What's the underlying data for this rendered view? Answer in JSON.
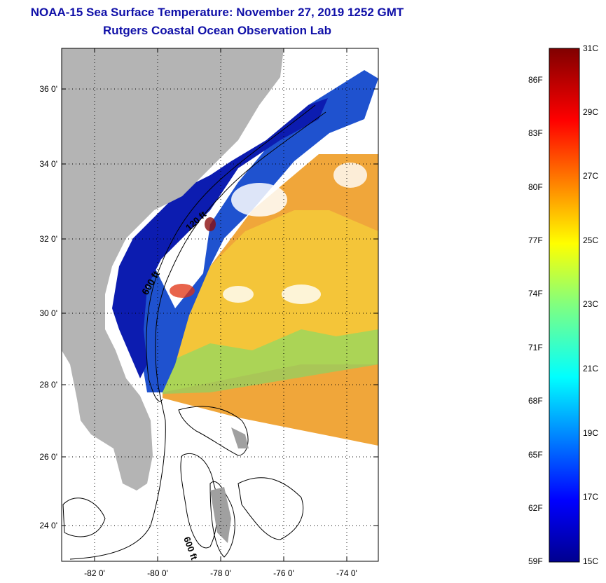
{
  "header": {
    "title": "NOAA-15 Sea Surface Temperature:  November 27, 2019 1252 GMT",
    "subtitle": "Rutgers Coastal Ocean Observation Lab"
  },
  "map": {
    "lat_ticks": [
      "36 0'",
      "34 0'",
      "32 0'",
      "30 0'",
      "28 0'",
      "26 0'",
      "24 0'"
    ],
    "lon_ticks": [
      "-82 0'",
      "-80 0'",
      "-78 0'",
      "-76 0'",
      "-74 0'"
    ],
    "contour_labels": [
      "120 ft",
      "600 ft",
      "600 ft"
    ]
  },
  "colorbar": {
    "fahrenheit": [
      "86F",
      "83F",
      "80F",
      "77F",
      "74F",
      "71F",
      "68F",
      "65F",
      "62F",
      "59F"
    ],
    "celsius": [
      "31C",
      "29C",
      "27C",
      "25C",
      "23C",
      "21C",
      "19C",
      "17C",
      "15C"
    ]
  },
  "colors": {
    "title": "#1010a8",
    "land": "#b4b4b4",
    "warm": "#f0a020",
    "cold": "#0a1ea0"
  }
}
